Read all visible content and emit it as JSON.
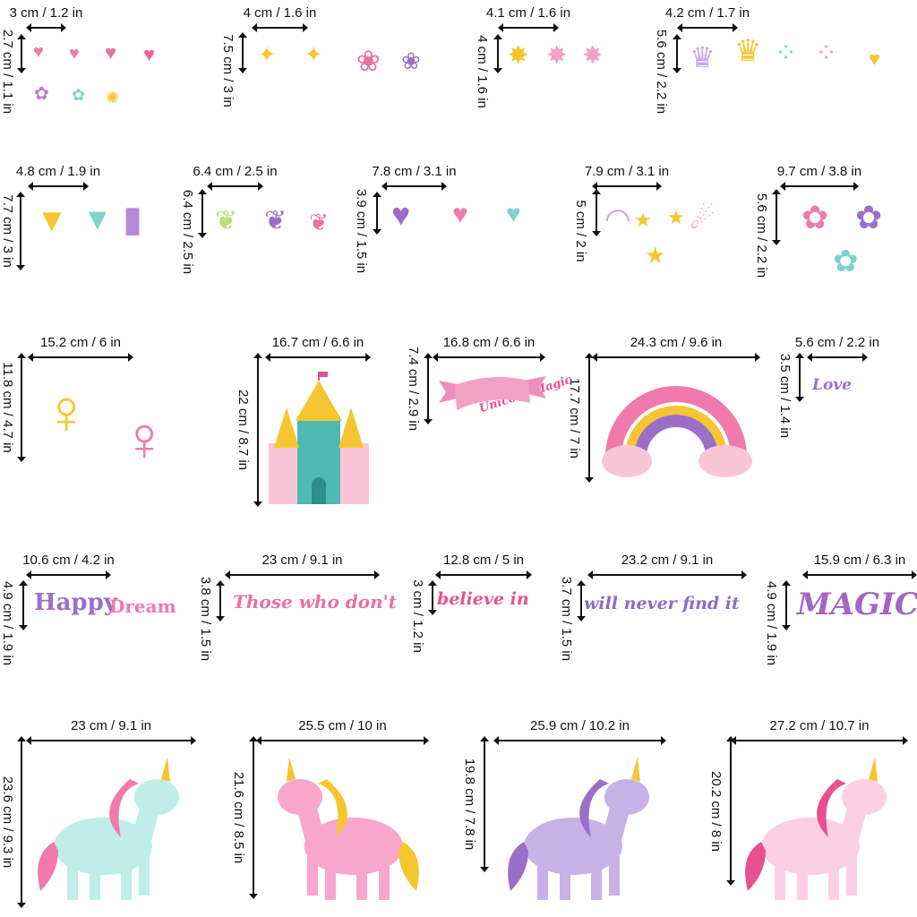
{
  "items": [
    {
      "width": "3 cm / 1.2 in",
      "height": "2.7 cm / 1.1 in"
    },
    {
      "width": "4 cm / 1.6 in",
      "height": "7.5 cm / 3 in"
    },
    {
      "width": "4.1 cm / 1.6 in",
      "height": "4 cm / 1.6 in"
    },
    {
      "width": "4.2 cm / 1.7 in",
      "height": "5.6 cm / 2.2 in"
    },
    {
      "width": "4.8 cm / 1.9 in",
      "height": "7.7 cm / 3 in"
    },
    {
      "width": "6.4 cm / 2.5 in",
      "height": "6.4 cm / 2.5 in"
    },
    {
      "width": "7.8 cm / 3.1 in",
      "height": "3.9 cm / 1.5 in"
    },
    {
      "width": "7.9 cm / 3.1 in",
      "height": "5 cm / 2 in"
    },
    {
      "width": "9.7 cm / 3.8 in",
      "height": "5.6 cm / 2.2 in"
    },
    {
      "width": "15.2 cm / 6 in",
      "height": "11.8 cm / 4.7 in"
    },
    {
      "width": "16.7 cm / 6.6 in",
      "height": "22 cm / 8.7 in"
    },
    {
      "width": "16.8 cm / 6.6 in",
      "height": "7.4 cm / 2.9 in"
    },
    {
      "width": "24.3 cm / 9.6 in",
      "height": "17.7 cm / 7 in"
    },
    {
      "width": "5.6 cm / 2.2 in",
      "height": "3.5 cm / 1.4 in"
    },
    {
      "width": "10.6 cm / 4.2 in",
      "height": "4.9 cm / 1.9 in"
    },
    {
      "width": "23 cm / 9.1 in",
      "height": "3.8 cm / 1.5 in"
    },
    {
      "width": "12.8 cm / 5 in",
      "height": "3 cm / 1.2 in"
    },
    {
      "width": "23.2 cm / 9.1 in",
      "height": "3.7 cm / 1.5 in"
    },
    {
      "width": "15.9 cm / 6.3 in",
      "height": "4.9 cm / 1.9 in"
    },
    {
      "width": "23 cm / 9.1 in",
      "height": "23.6 cm / 9.3 in"
    },
    {
      "width": "25.5 cm / 10 in",
      "height": "21.6 cm / 8.5 in"
    },
    {
      "width": "25.9 cm / 10.2 in",
      "height": "19.8 cm / 7.8 in"
    },
    {
      "width": "27.2 cm / 10.7 in",
      "height": "20.2 cm / 8 in"
    }
  ],
  "decal_text": {
    "banner": "Unicorn Magic",
    "love": "Love",
    "happy": "Happy",
    "dream": "Dream",
    "those": "Those who don't",
    "believe": "believe in",
    "never": "will never find it",
    "magic": "MAGIC"
  },
  "colors": {
    "purple": "#9b6fc8",
    "pink": "#e8508f",
    "lightpink": "#f3a2c4",
    "teal": "#7fd3cf",
    "yellow": "#f6c630"
  }
}
